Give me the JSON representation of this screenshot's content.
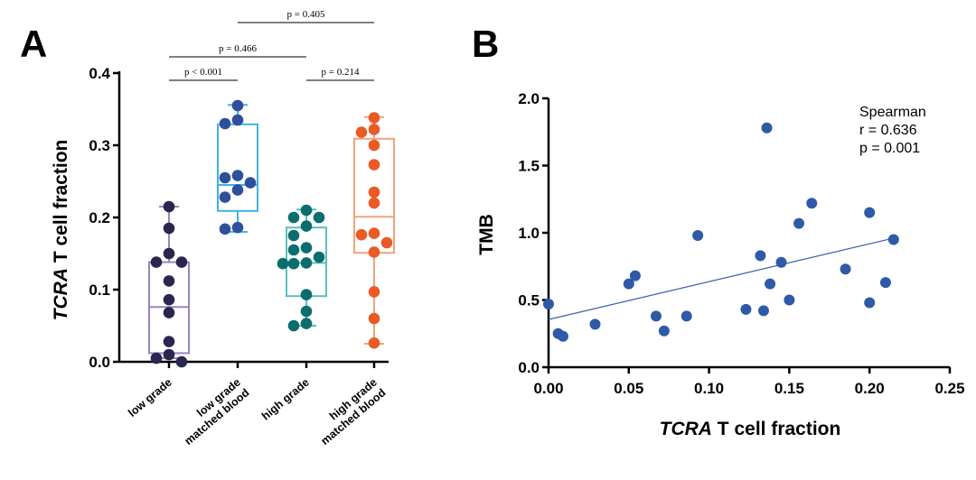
{
  "chart_data": [
    {
      "panel": "A",
      "type": "box",
      "ylabel_italic": "TCRA",
      "ylabel_rest": " T cell fraction",
      "ylim": [
        0,
        0.4
      ],
      "yticks": [
        "0.0",
        "0.1",
        "0.2",
        "0.3",
        "0.4"
      ],
      "groups": [
        {
          "label_lines": [
            "low grade"
          ],
          "box_color": "#9b84c0",
          "point_color": "#2c254f",
          "box": {
            "min": 0.005,
            "q1": 0.012,
            "median": 0.076,
            "q3": 0.138,
            "max": 0.215
          },
          "points": [
            0.215,
            0.185,
            0.15,
            0.138,
            0.138,
            0.112,
            0.086,
            0.068,
            0.028,
            0.01,
            0.005,
            0.0
          ]
        },
        {
          "label_lines": [
            "low grade",
            "matched blood"
          ],
          "box_color": "#3db4e6",
          "point_color": "#2e4f9c",
          "box": {
            "min": 0.18,
            "q1": 0.209,
            "median": 0.245,
            "q3": 0.329,
            "max": 0.356
          },
          "points": [
            0.355,
            0.335,
            0.33,
            0.258,
            0.255,
            0.248,
            0.238,
            0.228,
            0.186,
            0.184
          ]
        },
        {
          "label_lines": [
            "high grade"
          ],
          "box_color": "#5bbfc0",
          "point_color": "#0a6e6e",
          "box": {
            "min": 0.05,
            "q1": 0.091,
            "median": 0.137,
            "q3": 0.186,
            "max": 0.211
          },
          "points": [
            0.21,
            0.2,
            0.2,
            0.188,
            0.175,
            0.158,
            0.155,
            0.145,
            0.137,
            0.136,
            0.136,
            0.093,
            0.07,
            0.053,
            0.05
          ]
        },
        {
          "label_lines": [
            "high grade",
            "matched blood"
          ],
          "box_color": "#f0a37d",
          "point_color": "#ea5a24",
          "box": {
            "min": 0.025,
            "q1": 0.151,
            "median": 0.201,
            "q3": 0.309,
            "max": 0.339
          },
          "points": [
            0.338,
            0.322,
            0.318,
            0.3,
            0.273,
            0.235,
            0.22,
            0.178,
            0.176,
            0.165,
            0.152,
            0.097,
            0.06,
            0.026
          ]
        }
      ],
      "annotations": [
        {
          "text": "p < 0.001",
          "from": 0,
          "to": 1,
          "level": 1
        },
        {
          "text": "p = 0.214",
          "from": 2,
          "to": 3,
          "level": 1
        },
        {
          "text": "p = 0.466",
          "from": 0,
          "to": 2,
          "level": 2
        },
        {
          "text": "p = 0.405",
          "from": 1,
          "to": 3,
          "level": 3
        }
      ]
    },
    {
      "panel": "B",
      "type": "scatter",
      "xlabel_italic": "TCRA",
      "xlabel_rest": " T cell fraction",
      "ylabel": "TMB",
      "xlim": [
        0,
        0.25
      ],
      "ylim": [
        0,
        2.0
      ],
      "xticks": [
        "0.00",
        "0.05",
        "0.10",
        "0.15",
        "0.20",
        "0.25"
      ],
      "yticks": [
        "0.0",
        "0.5",
        "1.0",
        "1.5",
        "2.0"
      ],
      "point_color": "#2e5aa8",
      "points": [
        {
          "x": 0.0,
          "y": 0.47
        },
        {
          "x": 0.006,
          "y": 0.25
        },
        {
          "x": 0.009,
          "y": 0.23
        },
        {
          "x": 0.029,
          "y": 0.32
        },
        {
          "x": 0.05,
          "y": 0.62
        },
        {
          "x": 0.054,
          "y": 0.68
        },
        {
          "x": 0.067,
          "y": 0.38
        },
        {
          "x": 0.072,
          "y": 0.27
        },
        {
          "x": 0.086,
          "y": 0.38
        },
        {
          "x": 0.093,
          "y": 0.98
        },
        {
          "x": 0.123,
          "y": 0.43
        },
        {
          "x": 0.132,
          "y": 0.83
        },
        {
          "x": 0.134,
          "y": 0.42
        },
        {
          "x": 0.136,
          "y": 1.78
        },
        {
          "x": 0.138,
          "y": 0.62
        },
        {
          "x": 0.145,
          "y": 0.78
        },
        {
          "x": 0.15,
          "y": 0.5
        },
        {
          "x": 0.156,
          "y": 1.07
        },
        {
          "x": 0.164,
          "y": 1.22
        },
        {
          "x": 0.185,
          "y": 0.73
        },
        {
          "x": 0.2,
          "y": 1.15
        },
        {
          "x": 0.2,
          "y": 0.48
        },
        {
          "x": 0.21,
          "y": 0.63
        },
        {
          "x": 0.215,
          "y": 0.95
        }
      ],
      "fit_line": {
        "x": [
          0.0,
          0.215
        ],
        "y": [
          0.355,
          0.96
        ],
        "color": "#3a5fa5"
      },
      "stats": [
        "Spearman",
        "r = 0.636",
        "p = 0.001"
      ]
    }
  ]
}
